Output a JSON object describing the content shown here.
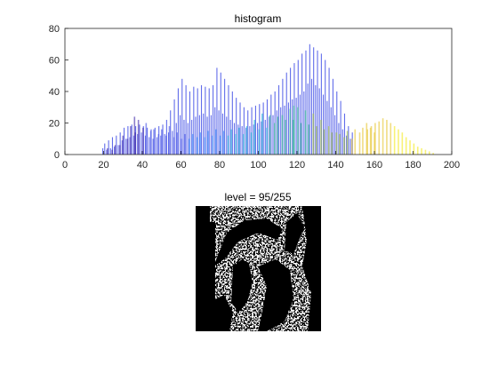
{
  "chart_data": [
    {
      "type": "bar",
      "title": "histogram",
      "xlabel": "",
      "ylabel": "",
      "xlim": [
        0,
        200
      ],
      "ylim": [
        0,
        80
      ],
      "xticks": [
        0,
        20,
        40,
        60,
        80,
        100,
        120,
        140,
        160,
        180,
        200
      ],
      "yticks": [
        0,
        20,
        40,
        60,
        80
      ],
      "grid": false,
      "colormap": "parula",
      "colors": [
        "#3e26a8",
        "#4653e6",
        "#2f86f9",
        "#17aed6",
        "#34c08e",
        "#a2c23c",
        "#e6c52e",
        "#f4ea1a"
      ],
      "series": [
        {
          "values": [
            [
              20,
              4
            ],
            [
              21,
              7
            ],
            [
              22,
              3
            ],
            [
              23,
              9
            ],
            [
              24,
              4
            ],
            [
              25,
              11
            ],
            [
              26,
              5
            ],
            [
              27,
              12
            ],
            [
              28,
              6
            ],
            [
              29,
              14
            ],
            [
              30,
              9
            ],
            [
              31,
              17
            ],
            [
              32,
              10
            ],
            [
              33,
              18
            ],
            [
              34,
              11
            ],
            [
              35,
              19
            ],
            [
              36,
              12
            ],
            [
              37,
              18
            ],
            [
              38,
              13
            ],
            [
              39,
              19
            ],
            [
              40,
              14
            ],
            [
              41,
              18
            ],
            [
              42,
              12
            ],
            [
              43,
              17
            ],
            [
              44,
              11
            ],
            [
              45,
              16
            ],
            [
              46,
              10
            ],
            [
              47,
              17
            ],
            [
              48,
              11
            ],
            [
              49,
              18
            ],
            [
              50,
              12
            ],
            [
              51,
              19
            ],
            [
              52,
              13
            ],
            [
              53,
              22
            ],
            [
              54,
              14
            ],
            [
              55,
              28
            ],
            [
              56,
              15
            ],
            [
              57,
              35
            ],
            [
              58,
              20
            ],
            [
              59,
              42
            ],
            [
              60,
              25
            ],
            [
              61,
              48
            ],
            [
              62,
              22
            ],
            [
              63,
              44
            ],
            [
              64,
              20
            ],
            [
              65,
              40
            ],
            [
              66,
              22
            ],
            [
              67,
              43
            ],
            [
              68,
              24
            ],
            [
              69,
              42
            ],
            [
              70,
              25
            ],
            [
              71,
              44
            ],
            [
              72,
              26
            ],
            [
              73,
              43
            ],
            [
              74,
              24
            ],
            [
              75,
              42
            ],
            [
              76,
              25
            ],
            [
              77,
              44
            ],
            [
              78,
              30
            ],
            [
              79,
              55
            ],
            [
              80,
              28
            ],
            [
              81,
              52
            ],
            [
              82,
              26
            ],
            [
              83,
              48
            ],
            [
              84,
              24
            ],
            [
              85,
              44
            ],
            [
              86,
              22
            ],
            [
              87,
              40
            ],
            [
              88,
              20
            ],
            [
              89,
              36
            ],
            [
              90,
              19
            ],
            [
              91,
              33
            ],
            [
              92,
              18
            ],
            [
              93,
              30
            ],
            [
              94,
              17
            ],
            [
              95,
              28
            ],
            [
              96,
              18
            ],
            [
              97,
              30
            ],
            [
              98,
              19
            ],
            [
              99,
              31
            ],
            [
              100,
              20
            ],
            [
              101,
              32
            ],
            [
              102,
              21
            ],
            [
              103,
              33
            ],
            [
              104,
              22
            ],
            [
              105,
              35
            ],
            [
              106,
              24
            ],
            [
              107,
              38
            ],
            [
              108,
              25
            ],
            [
              109,
              40
            ],
            [
              110,
              28
            ],
            [
              111,
              44
            ],
            [
              112,
              30
            ],
            [
              113,
              48
            ],
            [
              114,
              31
            ],
            [
              115,
              52
            ],
            [
              116,
              33
            ],
            [
              117,
              55
            ],
            [
              118,
              35
            ],
            [
              119,
              58
            ],
            [
              120,
              36
            ],
            [
              121,
              60
            ],
            [
              122,
              38
            ],
            [
              123,
              64
            ],
            [
              124,
              40
            ],
            [
              125,
              66
            ],
            [
              126,
              45
            ],
            [
              127,
              70
            ],
            [
              128,
              48
            ],
            [
              129,
              68
            ],
            [
              130,
              44
            ],
            [
              131,
              66
            ],
            [
              132,
              42
            ],
            [
              133,
              64
            ],
            [
              134,
              38
            ],
            [
              135,
              60
            ],
            [
              136,
              34
            ],
            [
              137,
              55
            ],
            [
              138,
              30
            ],
            [
              139,
              48
            ],
            [
              140,
              25
            ],
            [
              141,
              40
            ],
            [
              142,
              20
            ],
            [
              143,
              34
            ],
            [
              144,
              16
            ],
            [
              145,
              26
            ],
            [
              146,
              12
            ],
            [
              147,
              18
            ],
            [
              148,
              10
            ],
            [
              149,
              14
            ]
          ]
        },
        {
          "values": [
            [
              22,
              4
            ],
            [
              26,
              6
            ],
            [
              30,
              12
            ],
            [
              34,
              18
            ],
            [
              36,
              24
            ],
            [
              38,
              22
            ],
            [
              42,
              20
            ],
            [
              46,
              16
            ],
            [
              50,
              16
            ],
            [
              54,
              18
            ],
            [
              58,
              14
            ],
            [
              62,
              13
            ],
            [
              66,
              13
            ],
            [
              70,
              14
            ],
            [
              74,
              15
            ],
            [
              78,
              16
            ],
            [
              82,
              15
            ],
            [
              86,
              16
            ],
            [
              90,
              17
            ],
            [
              94,
              18
            ],
            [
              98,
              22
            ],
            [
              102,
              26
            ],
            [
              106,
              25
            ],
            [
              110,
              24
            ],
            [
              114,
              22
            ],
            [
              118,
              22
            ],
            [
              122,
              20
            ],
            [
              126,
              19
            ],
            [
              130,
              18
            ],
            [
              134,
              16
            ],
            [
              138,
              14
            ],
            [
              142,
              13
            ],
            [
              146,
              15
            ],
            [
              150,
              16
            ],
            [
              154,
              17
            ],
            [
              156,
              20
            ],
            [
              158,
              17
            ],
            [
              160,
              14
            ]
          ]
        },
        {
          "values": [
            [
              24,
              3
            ],
            [
              28,
              6
            ],
            [
              32,
              10
            ],
            [
              36,
              14
            ],
            [
              40,
              17
            ],
            [
              44,
              15
            ],
            [
              48,
              13
            ],
            [
              52,
              12
            ],
            [
              56,
              11
            ],
            [
              60,
              10
            ],
            [
              64,
              10
            ],
            [
              68,
              11
            ],
            [
              72,
              11
            ],
            [
              76,
              12
            ],
            [
              80,
              12
            ],
            [
              84,
              12
            ],
            [
              88,
              13
            ],
            [
              92,
              13
            ],
            [
              96,
              14
            ],
            [
              100,
              16
            ],
            [
              104,
              17
            ],
            [
              108,
              20
            ],
            [
              112,
              25
            ],
            [
              116,
              29
            ],
            [
              118,
              31
            ],
            [
              120,
              30
            ],
            [
              124,
              28
            ],
            [
              128,
              26
            ],
            [
              132,
              22
            ],
            [
              136,
              18
            ],
            [
              140,
              14
            ],
            [
              144,
              11
            ],
            [
              148,
              10
            ],
            [
              152,
              14
            ],
            [
              156,
              16
            ],
            [
              158,
              18
            ],
            [
              160,
              20
            ],
            [
              162,
              21
            ],
            [
              164,
              23
            ],
            [
              166,
              22
            ],
            [
              168,
              20
            ],
            [
              170,
              18
            ],
            [
              172,
              16
            ],
            [
              174,
              14
            ],
            [
              176,
              11
            ],
            [
              178,
              9
            ],
            [
              180,
              7
            ],
            [
              182,
              5
            ],
            [
              184,
              4
            ],
            [
              186,
              3
            ],
            [
              188,
              2
            ],
            [
              190,
              1
            ]
          ]
        }
      ]
    },
    {
      "type": "image",
      "title": "level = 95/255",
      "colormap": "binary"
    }
  ]
}
